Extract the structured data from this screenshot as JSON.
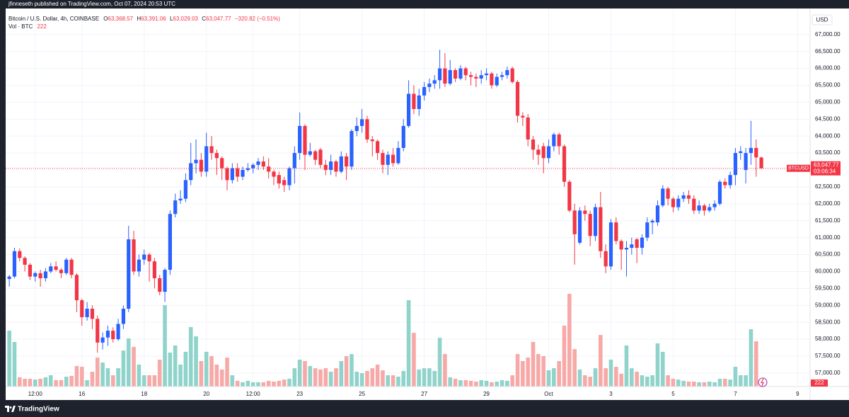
{
  "chart_data": {
    "type": "candlestick",
    "header": "jfinneseth published on TradingView.com, Oct 07, 2024 20:53 UTC",
    "title": "Bitcoin / U.S. Dollar, 4h, COINBASE",
    "ohlc_letters": [
      "O",
      "H",
      "L",
      "C"
    ],
    "last_labels": [
      "63,368.57",
      "63,391.06",
      "63,029.03",
      "63,047.77"
    ],
    "change": "−320.82 (−0.51%)",
    "volume_label": "Vol · BTC",
    "currency": "USD",
    "symbol": "BTCUSD",
    "countdown": "03:06:34",
    "brand": "TradingView",
    "up_color": "#2962ff",
    "down_color": "#f23645",
    "volume_up_color": "#8fd3cb",
    "volume_down_color": "#f7a9a7",
    "grid": true,
    "open": [
      59780,
      59850,
      60600,
      60400,
      60200,
      59850,
      59950,
      59800,
      60000,
      60150,
      60050,
      59950,
      60350,
      59900,
      59150,
      58650,
      58900,
      58600,
      57900,
      58050,
      58250,
      58000,
      58450,
      58900,
      60950,
      60000,
      60350,
      60500,
      60300,
      59800,
      59400,
      60050,
      61700,
      62100,
      62150,
      62700,
      63200,
      63300,
      62950,
      63700,
      63500,
      63350,
      63050,
      62700,
      63050,
      62800,
      63000,
      63050,
      63150,
      63250,
      63100,
      62950,
      62850,
      62700,
      62550,
      63050,
      63500,
      64300,
      63450,
      63550,
      63600,
      63150,
      63000,
      63250,
      62950,
      63400,
      63100,
      64150,
      64300,
      64500,
      63900,
      63850,
      63500,
      63150,
      63450,
      63200,
      63650,
      64300,
      65250,
      64800,
      65200,
      65450,
      65550,
      65650,
      66000,
      65550,
      65950,
      65700,
      66000,
      65800,
      65750,
      65700,
      65800,
      65850,
      65500,
      65750,
      65800,
      66000,
      65600,
      64600,
      64550,
      63900,
      63600,
      63700,
      63350,
      63700,
      64050,
      63700,
      62650,
      61800,
      60850,
      61800,
      61700,
      61050,
      61900,
      60600,
      60150,
      61450,
      60900,
      60650,
      60700,
      60950,
      60700,
      61000,
      61450,
      61450,
      61950,
      62450,
      62150,
      61900,
      62150,
      62250,
      62150,
      61800,
      61950,
      61800,
      61900,
      62000,
      62650,
      62550,
      62850,
      63500,
      63000,
      63500,
      63650,
      63368.57
    ],
    "high": [
      59900,
      60700,
      60680,
      60450,
      60250,
      60000,
      60050,
      60100,
      60250,
      60300,
      60100,
      60400,
      60400,
      59950,
      59200,
      59100,
      59000,
      58700,
      58200,
      58400,
      58350,
      58600,
      59000,
      61350,
      61200,
      60500,
      60650,
      60550,
      60400,
      59900,
      60100,
      61800,
      62300,
      62400,
      62900,
      63800,
      63900,
      63500,
      64100,
      64000,
      63600,
      63400,
      63100,
      63200,
      63200,
      63100,
      63200,
      63200,
      63350,
      63400,
      63350,
      63000,
      62950,
      62800,
      63100,
      63700,
      64700,
      64350,
      63800,
      63600,
      63650,
      63300,
      63450,
      63300,
      63550,
      63500,
      64200,
      64550,
      64800,
      64600,
      64000,
      63900,
      63600,
      63550,
      63650,
      63850,
      64500,
      65650,
      65500,
      65400,
      65600,
      65700,
      65800,
      66550,
      66450,
      66250,
      66000,
      66100,
      66050,
      65900,
      65850,
      65950,
      66000,
      65900,
      65850,
      65900,
      66050,
      66050,
      65650,
      64700,
      64650,
      64000,
      63750,
      63800,
      63900,
      64100,
      64100,
      63750,
      62700,
      62000,
      61900,
      61950,
      61800,
      62000,
      62350,
      60800,
      61550,
      61600,
      60950,
      60900,
      61000,
      61000,
      61100,
      61600,
      61550,
      62100,
      62550,
      62500,
      62200,
      62250,
      62350,
      62400,
      62250,
      62100,
      62000,
      62000,
      62100,
      62700,
      62750,
      62950,
      63650,
      63700,
      63650,
      64450,
      63900,
      63391.06
    ],
    "low": [
      59550,
      59800,
      60300,
      60000,
      59750,
      59700,
      59550,
      59700,
      59950,
      60000,
      59800,
      59900,
      59800,
      58800,
      58400,
      58550,
      58300,
      57600,
      57700,
      57800,
      57900,
      57950,
      58300,
      58800,
      59900,
      59850,
      60200,
      59700,
      59500,
      59300,
      59100,
      59900,
      61600,
      62000,
      62050,
      62550,
      62900,
      62800,
      62800,
      63300,
      62850,
      62700,
      62400,
      62600,
      62650,
      62700,
      62950,
      62900,
      63000,
      63000,
      62750,
      62550,
      62450,
      62350,
      62400,
      62600,
      63300,
      63000,
      63400,
      63150,
      63050,
      62850,
      62850,
      62800,
      62900,
      62700,
      63000,
      64000,
      64100,
      63800,
      63400,
      63300,
      62900,
      62850,
      63100,
      63150,
      63550,
      64250,
      64650,
      64600,
      65050,
      65300,
      65400,
      65400,
      65450,
      65500,
      65600,
      65650,
      65650,
      65500,
      65450,
      65550,
      65650,
      65400,
      65450,
      65650,
      65700,
      65550,
      64400,
      64300,
      63700,
      63300,
      63150,
      62900,
      63200,
      63550,
      63450,
      62500,
      61750,
      60200,
      60800,
      61500,
      60750,
      60900,
      60400,
      59950,
      60050,
      60800,
      60050,
      59850,
      60500,
      60250,
      60500,
      60900,
      61100,
      61350,
      61900,
      61950,
      61750,
      61800,
      62050,
      62000,
      61700,
      61700,
      61650,
      61750,
      61800,
      61950,
      62450,
      62450,
      62550,
      63300,
      62600,
      63150,
      62800,
      63029.03
    ],
    "close": [
      59850,
      60600,
      60400,
      60200,
      59850,
      59950,
      59800,
      60000,
      60150,
      60050,
      59950,
      60350,
      59900,
      59150,
      58650,
      58900,
      58600,
      57900,
      58050,
      58250,
      58000,
      58450,
      58900,
      60950,
      60000,
      60350,
      60500,
      60300,
      59800,
      59400,
      60050,
      61700,
      62100,
      62150,
      62700,
      63200,
      63300,
      62950,
      63700,
      63500,
      63350,
      63050,
      62700,
      63050,
      62800,
      63000,
      63050,
      63150,
      63250,
      63100,
      62950,
      62800,
      62600,
      62550,
      63050,
      63500,
      64300,
      63450,
      63550,
      63300,
      63150,
      63000,
      63250,
      62950,
      63400,
      63100,
      64150,
      64300,
      64500,
      63900,
      63850,
      63500,
      63150,
      63450,
      63200,
      63650,
      64300,
      65250,
      64800,
      65200,
      65450,
      65550,
      65650,
      66000,
      65550,
      65950,
      65700,
      66000,
      65800,
      65750,
      65700,
      65800,
      65850,
      65500,
      65750,
      65800,
      65950,
      65600,
      64600,
      64550,
      63900,
      63600,
      63450,
      63350,
      63700,
      64050,
      63700,
      62650,
      61800,
      61100,
      61800,
      61700,
      61050,
      61900,
      60600,
      60150,
      61450,
      60900,
      60650,
      60700,
      60800,
      60700,
      61000,
      61450,
      61500,
      61950,
      62450,
      62150,
      61900,
      62150,
      62250,
      62150,
      61800,
      61950,
      61800,
      61900,
      62000,
      62650,
      62550,
      62850,
      63500,
      63550,
      63500,
      63650,
      63370,
      63047.77
    ],
    "volume": [
      3510,
      2800,
      580,
      490,
      490,
      440,
      490,
      580,
      710,
      400,
      400,
      620,
      670,
      1290,
      1240,
      400,
      930,
      1820,
      1510,
      1150,
      710,
      1150,
      2260,
      3020,
      2490,
      1380,
      710,
      710,
      710,
      1690,
      5110,
      2130,
      2580,
      1380,
      2180,
      3730,
      3150,
      1600,
      2180,
      1910,
      1380,
      1070,
      1820,
      710,
      360,
      270,
      360,
      270,
      270,
      270,
      360,
      310,
      360,
      440,
      490,
      1150,
      1690,
      1600,
      1290,
      1150,
      1070,
      1150,
      930,
      1150,
      1600,
      1910,
      2040,
      930,
      840,
      980,
      1150,
      1380,
      1020,
      710,
      710,
      620,
      980,
      5420,
      3370,
      1070,
      1150,
      1150,
      980,
      3060,
      2040,
      580,
      490,
      400,
      400,
      360,
      310,
      400,
      360,
      270,
      310,
      400,
      360,
      710,
      2040,
      1600,
      1820,
      2800,
      2040,
      1910,
      1020,
      1150,
      1600,
      3820,
      5820,
      2350,
      1070,
      710,
      620,
      1150,
      3240,
      1150,
      1690,
      1240,
      800,
      2580,
      1150,
      930,
      710,
      620,
      710,
      2710,
      2180,
      710,
      490,
      440,
      360,
      310,
      310,
      270,
      270,
      310,
      270,
      490,
      490,
      440,
      1240,
      710,
      710,
      3600,
      2840,
      222
    ],
    "xlim": [
      -0.7,
      154.4
    ],
    "xticks": [
      {
        "value": 5,
        "label": "12:00"
      },
      {
        "value": 14,
        "label": "16"
      },
      {
        "value": 26,
        "label": "18"
      },
      {
        "value": 38,
        "label": "20"
      },
      {
        "value": 47,
        "label": "12:00"
      },
      {
        "value": 56,
        "label": "23"
      },
      {
        "value": 68,
        "label": "25"
      },
      {
        "value": 80,
        "label": "27"
      },
      {
        "value": 92,
        "label": "29"
      },
      {
        "value": 104,
        "label": "Oct"
      },
      {
        "value": 116,
        "label": "3"
      },
      {
        "value": 128,
        "label": "5"
      },
      {
        "value": 140,
        "label": "7"
      },
      {
        "value": 152,
        "label": "9"
      }
    ],
    "ylim": [
      56600,
      67770
    ],
    "yticks": [
      {
        "value": 57000,
        "label": "57,000.00"
      },
      {
        "value": 57500,
        "label": "57,500.00"
      },
      {
        "value": 58000,
        "label": "58,000.00"
      },
      {
        "value": 58500,
        "label": "58,500.00"
      },
      {
        "value": 59000,
        "label": "59,000.00"
      },
      {
        "value": 59500,
        "label": "59,500.00"
      },
      {
        "value": 60000,
        "label": "60,000.00"
      },
      {
        "value": 60500,
        "label": "60,500.00"
      },
      {
        "value": 61000,
        "label": "61,000.00"
      },
      {
        "value": 61500,
        "label": "61,500.00"
      },
      {
        "value": 62000,
        "label": "62,000.00"
      },
      {
        "value": 62500,
        "label": "62,500.00"
      },
      {
        "value": 63000,
        "label": "63,000.00"
      },
      {
        "value": 63500,
        "label": "63,500.00"
      },
      {
        "value": 64000,
        "label": "64,000.00"
      },
      {
        "value": 64500,
        "label": "64,500.00"
      },
      {
        "value": 65000,
        "label": "65,000.00"
      },
      {
        "value": 65500,
        "label": "65,500.00"
      },
      {
        "value": 66000,
        "label": "66,000.00"
      },
      {
        "value": 66500,
        "label": "66,500.00"
      },
      {
        "value": 67000,
        "label": "67,000.00"
      }
    ]
  }
}
